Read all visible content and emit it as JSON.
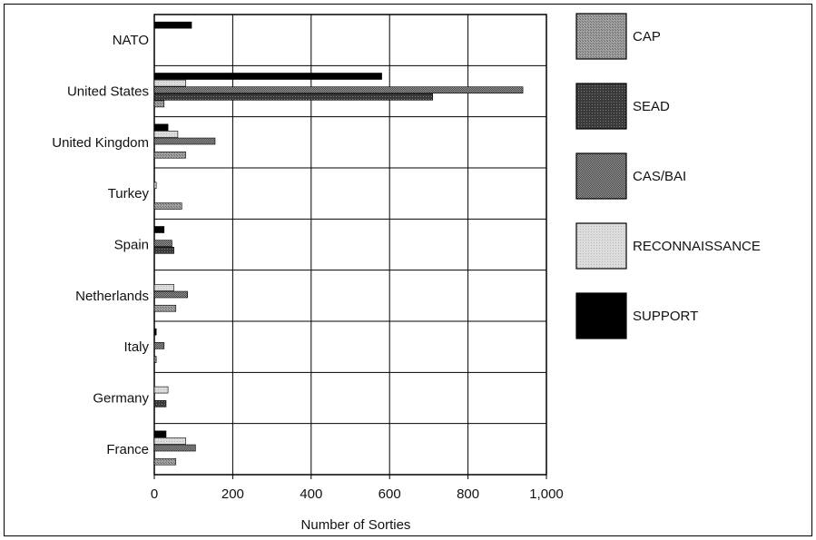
{
  "chart_data": {
    "type": "bar",
    "orientation": "horizontal",
    "title": "",
    "xlabel": "Number of Sorties",
    "ylabel": "",
    "xlim": [
      0,
      1000
    ],
    "xticks": [
      "0",
      "200",
      "400",
      "600",
      "800",
      "1,000"
    ],
    "grid": true,
    "legend_position": "right",
    "categories": [
      "NATO",
      "United States",
      "United Kingdom",
      "Turkey",
      "Spain",
      "Netherlands",
      "Italy",
      "Germany",
      "France"
    ],
    "series": [
      {
        "name": "SUPPORT",
        "color": "#000000",
        "pattern": "solid",
        "values": [
          95,
          580,
          35,
          0,
          25,
          0,
          5,
          0,
          30
        ]
      },
      {
        "name": "RECONNAISSANCE",
        "color": "#d2d2d2",
        "pattern": "light",
        "values": [
          0,
          80,
          60,
          5,
          0,
          50,
          0,
          35,
          80
        ]
      },
      {
        "name": "CAS/BAI",
        "color": "#6e6e6e",
        "pattern": "dither",
        "values": [
          0,
          940,
          155,
          0,
          45,
          85,
          25,
          0,
          105
        ]
      },
      {
        "name": "SEAD",
        "color": "#3e3e3e",
        "pattern": "dark",
        "values": [
          0,
          710,
          0,
          0,
          50,
          0,
          0,
          30,
          0
        ]
      },
      {
        "name": "CAP",
        "color": "#8f8f8f",
        "pattern": "mid",
        "values": [
          0,
          25,
          80,
          70,
          0,
          55,
          5,
          0,
          55
        ]
      }
    ],
    "legend": [
      "CAP",
      "SEAD",
      "CAS/BAI",
      "RECONNAISSANCE",
      "SUPPORT"
    ]
  }
}
